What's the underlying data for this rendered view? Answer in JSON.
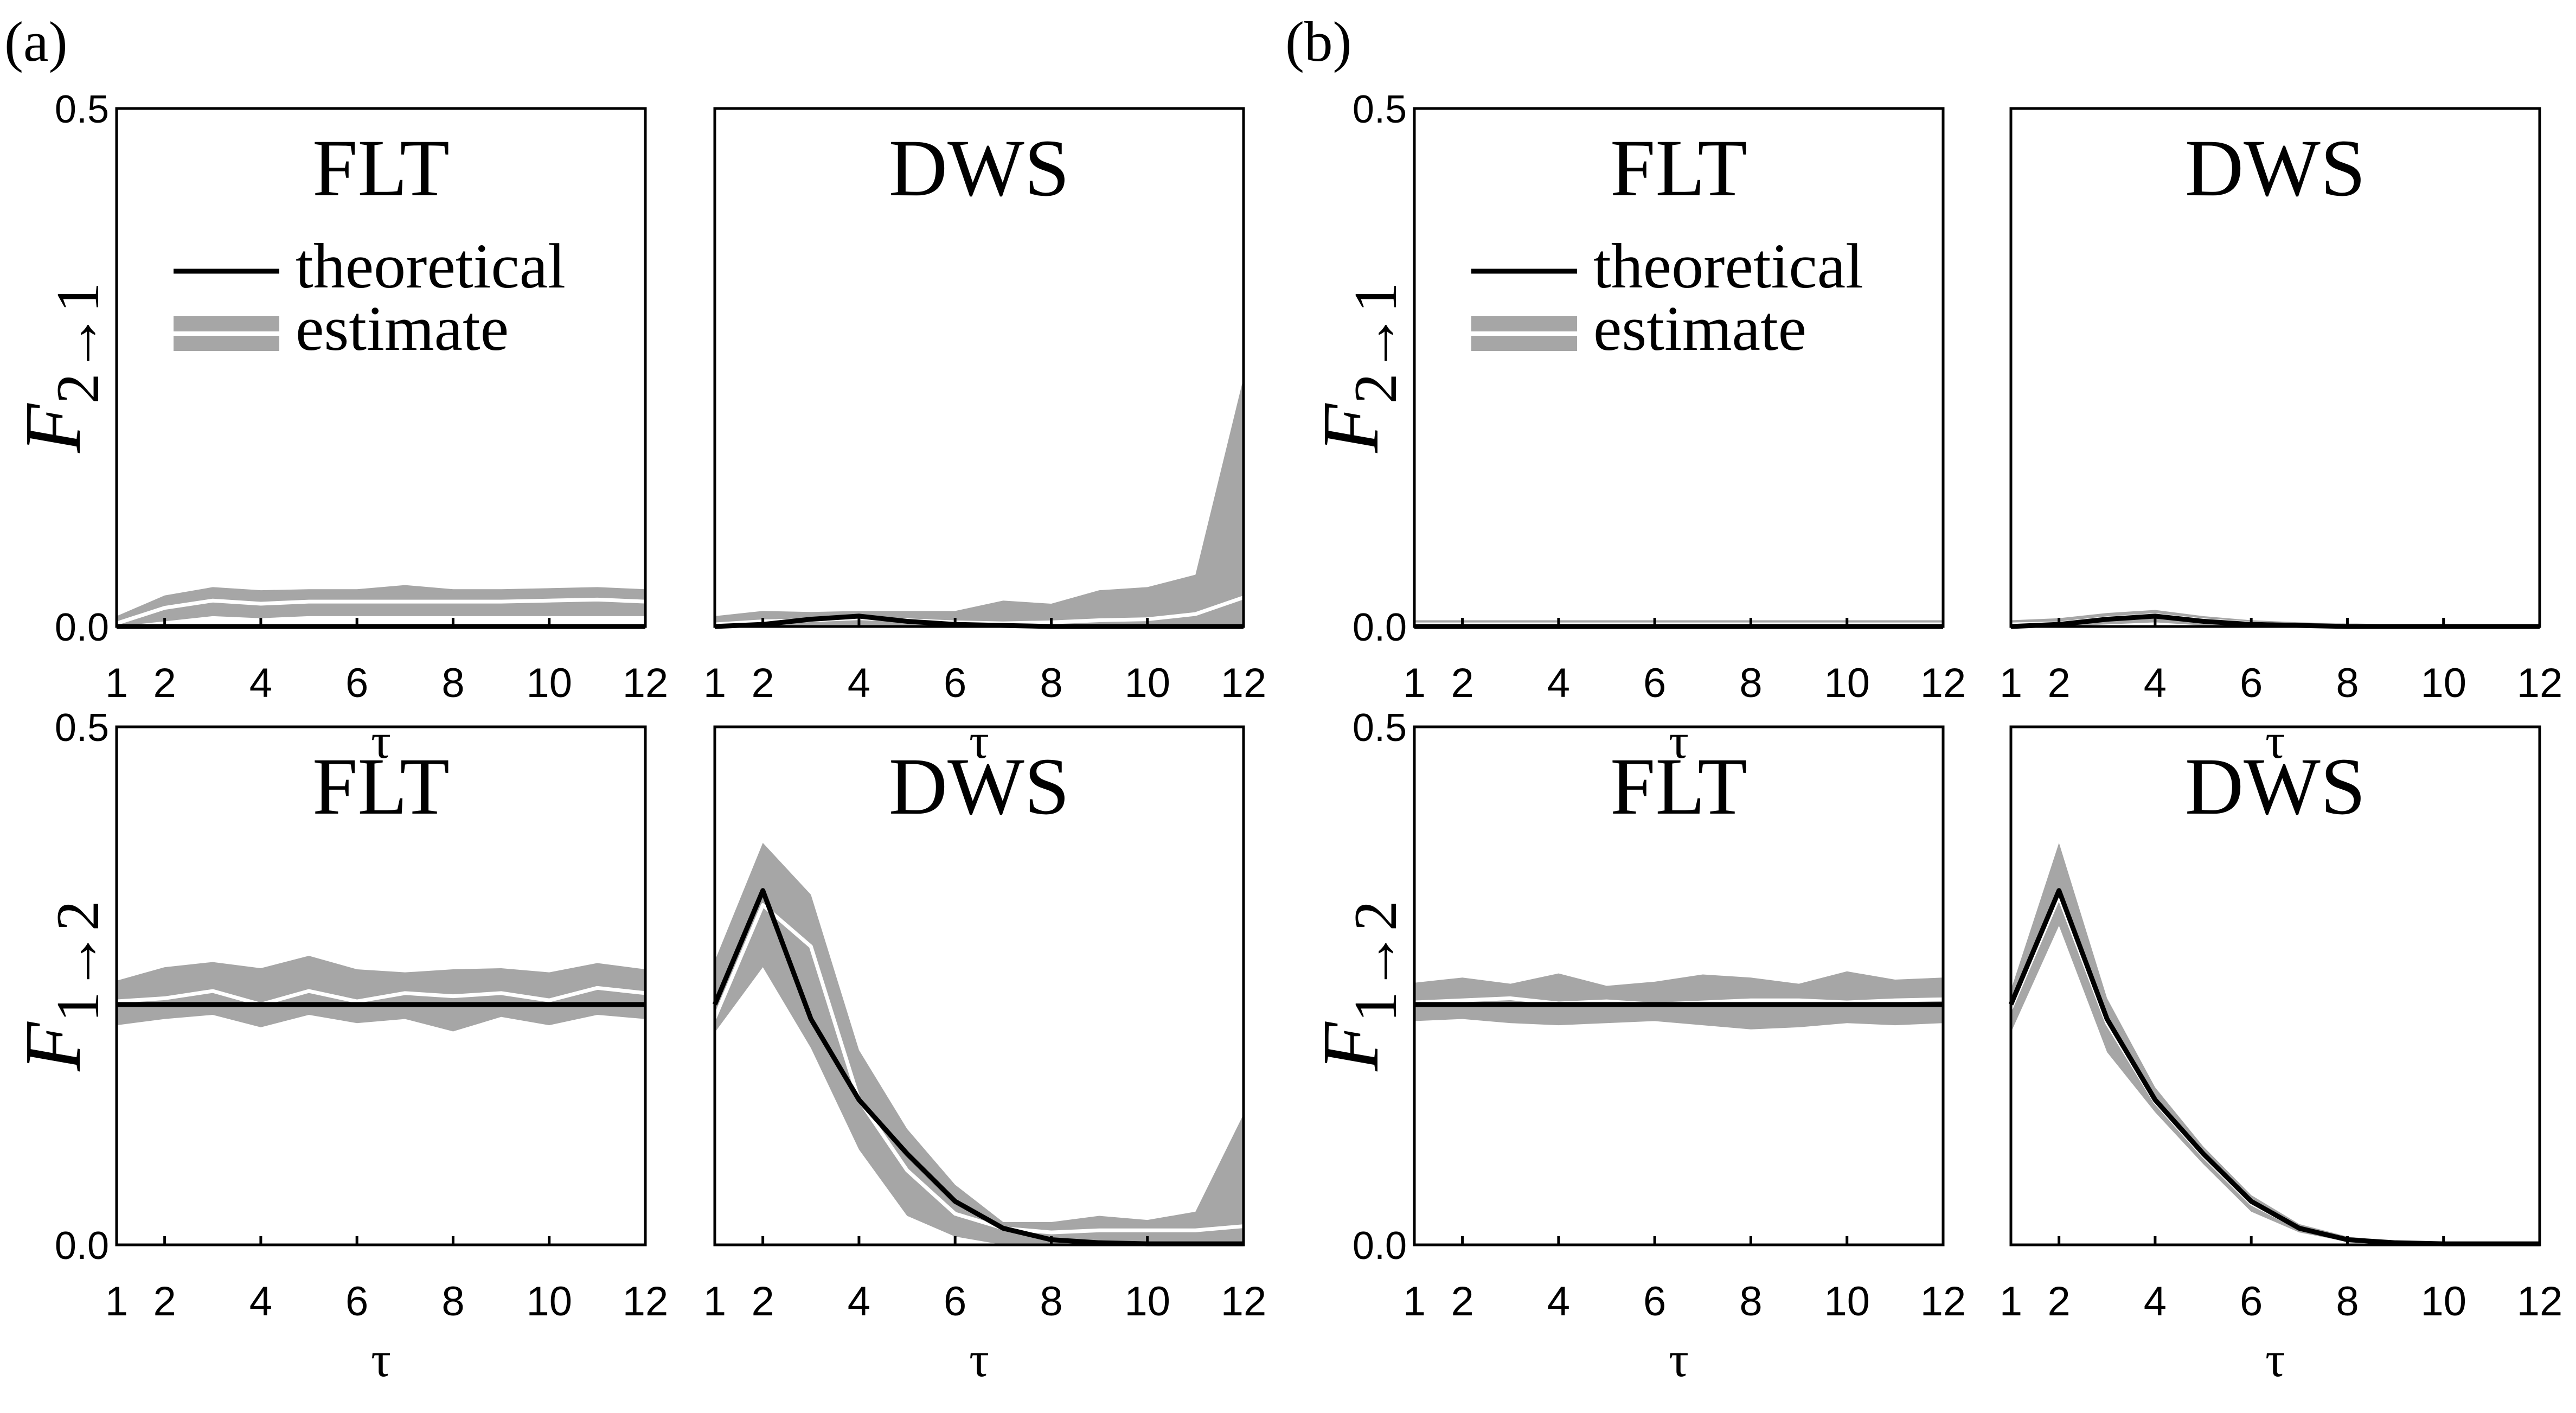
{
  "panel_labels": [
    "(a)",
    "(b)"
  ],
  "legend": {
    "theoretical": "theoretical",
    "estimate": "estimate"
  },
  "colors": {
    "band": "#a6a6a6",
    "estimate_line": "#ffffff",
    "theory_line": "#000000"
  },
  "chart_data": [
    {
      "type": "area",
      "panel": "(a)",
      "title": "FLT",
      "ylabel_main": "F",
      "ylabel_sub": "2→1",
      "xlabel": "τ",
      "xlim": [
        1,
        12
      ],
      "ylim": [
        0,
        0.5
      ],
      "y_ticks": [
        "0.0",
        "0.5"
      ],
      "x_ticks": [
        "1",
        "2",
        "4",
        "6",
        "8",
        "10",
        "12"
      ],
      "legend": true,
      "x": [
        1,
        2,
        3,
        4,
        5,
        6,
        7,
        8,
        9,
        10,
        11,
        12
      ],
      "theoretical": [
        0,
        0,
        0,
        0,
        0,
        0,
        0,
        0,
        0,
        0,
        0,
        0
      ],
      "estimate": [
        0.003,
        0.018,
        0.025,
        0.022,
        0.024,
        0.024,
        0.024,
        0.024,
        0.024,
        0.025,
        0.026,
        0.024
      ],
      "band_upper": [
        0.01,
        0.03,
        0.038,
        0.035,
        0.036,
        0.036,
        0.04,
        0.036,
        0.036,
        0.037,
        0.038,
        0.036
      ],
      "band_lower": [
        0,
        0.005,
        0.01,
        0.008,
        0.01,
        0.01,
        0.01,
        0.01,
        0.01,
        0.01,
        0.01,
        0.01
      ]
    },
    {
      "type": "area",
      "panel": "(a)",
      "title": "DWS",
      "ylabel_main": "",
      "ylabel_sub": "",
      "xlabel": "τ",
      "xlim": [
        1,
        12
      ],
      "ylim": [
        0,
        0.5
      ],
      "y_ticks": [
        "",
        ""
      ],
      "x_ticks": [
        "1",
        "2",
        "4",
        "6",
        "8",
        "10",
        "12"
      ],
      "legend": false,
      "x": [
        1,
        2,
        3,
        4,
        5,
        6,
        7,
        8,
        9,
        10,
        11,
        12
      ],
      "theoretical": [
        0,
        0.002,
        0.007,
        0.01,
        0.005,
        0.002,
        0.001,
        0,
        0,
        0,
        0,
        0
      ],
      "estimate": [
        0.002,
        0.005,
        0.006,
        0.008,
        0.006,
        0.004,
        0.003,
        0.004,
        0.006,
        0.007,
        0.012,
        0.028
      ],
      "band_upper": [
        0.01,
        0.015,
        0.014,
        0.015,
        0.015,
        0.015,
        0.025,
        0.022,
        0.035,
        0.038,
        0.05,
        0.24
      ],
      "band_lower": [
        0,
        0,
        0,
        0,
        0,
        0,
        0,
        0,
        0,
        0,
        0,
        0
      ]
    },
    {
      "type": "area",
      "panel": "(b)",
      "title": "FLT",
      "ylabel_main": "F",
      "ylabel_sub": "2→1",
      "xlabel": "τ",
      "xlim": [
        1,
        12
      ],
      "ylim": [
        0,
        0.5
      ],
      "y_ticks": [
        "0.0",
        "0.5"
      ],
      "x_ticks": [
        "1",
        "2",
        "4",
        "6",
        "8",
        "10",
        "12"
      ],
      "legend": true,
      "x": [
        1,
        2,
        3,
        4,
        5,
        6,
        7,
        8,
        9,
        10,
        11,
        12
      ],
      "theoretical": [
        0,
        0,
        0,
        0,
        0,
        0,
        0,
        0,
        0,
        0,
        0,
        0
      ],
      "estimate": [
        0.002,
        0.002,
        0.002,
        0.002,
        0.002,
        0.002,
        0.002,
        0.002,
        0.002,
        0.002,
        0.002,
        0.002
      ],
      "band_upper": [
        0.006,
        0.006,
        0.006,
        0.006,
        0.006,
        0.006,
        0.006,
        0.006,
        0.006,
        0.006,
        0.006,
        0.006
      ],
      "band_lower": [
        0,
        0,
        0,
        0,
        0,
        0,
        0,
        0,
        0,
        0,
        0,
        0
      ]
    },
    {
      "type": "area",
      "panel": "(b)",
      "title": "DWS",
      "ylabel_main": "",
      "ylabel_sub": "",
      "xlabel": "τ",
      "xlim": [
        1,
        12
      ],
      "ylim": [
        0,
        0.5
      ],
      "y_ticks": [
        "",
        ""
      ],
      "x_ticks": [
        "1",
        "2",
        "4",
        "6",
        "8",
        "10",
        "12"
      ],
      "legend": false,
      "x": [
        1,
        2,
        3,
        4,
        5,
        6,
        7,
        8,
        9,
        10,
        11,
        12
      ],
      "theoretical": [
        0,
        0.002,
        0.007,
        0.01,
        0.005,
        0.002,
        0.001,
        0,
        0,
        0,
        0,
        0
      ],
      "estimate": [
        0.002,
        0.003,
        0.008,
        0.011,
        0.006,
        0.003,
        0.001,
        0.001,
        0,
        0,
        0,
        0
      ],
      "band_upper": [
        0.006,
        0.008,
        0.013,
        0.016,
        0.01,
        0.006,
        0.004,
        0.003,
        0.002,
        0.002,
        0.002,
        0.002
      ],
      "band_lower": [
        0,
        0,
        0.002,
        0.004,
        0.001,
        0,
        0,
        0,
        0,
        0,
        0,
        0
      ]
    },
    {
      "type": "area",
      "panel": "(a)",
      "title": "FLT",
      "ylabel_main": "F",
      "ylabel_sub": "1→2",
      "xlabel": "τ",
      "xlim": [
        1,
        12
      ],
      "ylim": [
        0,
        0.5
      ],
      "y_ticks": [
        "0.0",
        "0.5"
      ],
      "x_ticks": [
        "1",
        "2",
        "4",
        "6",
        "8",
        "10",
        "12"
      ],
      "legend": false,
      "x": [
        1,
        2,
        3,
        4,
        5,
        6,
        7,
        8,
        9,
        10,
        11,
        12
      ],
      "theoretical": [
        0.232,
        0.232,
        0.232,
        0.232,
        0.232,
        0.232,
        0.232,
        0.232,
        0.232,
        0.232,
        0.232,
        0.232
      ],
      "estimate": [
        0.235,
        0.238,
        0.245,
        0.232,
        0.245,
        0.235,
        0.243,
        0.24,
        0.243,
        0.236,
        0.248,
        0.243
      ],
      "band_upper": [
        0.255,
        0.268,
        0.273,
        0.267,
        0.279,
        0.266,
        0.263,
        0.266,
        0.267,
        0.263,
        0.272,
        0.266
      ],
      "band_lower": [
        0.212,
        0.218,
        0.222,
        0.21,
        0.222,
        0.214,
        0.218,
        0.206,
        0.22,
        0.212,
        0.222,
        0.218
      ]
    },
    {
      "type": "area",
      "panel": "(a)",
      "title": "DWS",
      "ylabel_main": "",
      "ylabel_sub": "",
      "xlabel": "τ",
      "xlim": [
        1,
        12
      ],
      "ylim": [
        0,
        0.5
      ],
      "y_ticks": [
        "",
        ""
      ],
      "x_ticks": [
        "1",
        "2",
        "4",
        "6",
        "8",
        "10",
        "12"
      ],
      "legend": false,
      "x": [
        1,
        2,
        3,
        4,
        5,
        6,
        7,
        8,
        9,
        10,
        11,
        12
      ],
      "theoretical": [
        0.232,
        0.342,
        0.218,
        0.14,
        0.088,
        0.042,
        0.016,
        0.005,
        0.002,
        0.001,
        0.001,
        0.001
      ],
      "estimate": [
        0.219,
        0.328,
        0.288,
        0.14,
        0.072,
        0.03,
        0.016,
        0.012,
        0.014,
        0.014,
        0.014,
        0.018
      ],
      "band_upper": [
        0.274,
        0.388,
        0.338,
        0.188,
        0.112,
        0.058,
        0.022,
        0.022,
        0.028,
        0.024,
        0.032,
        0.126
      ],
      "band_lower": [
        0.205,
        0.268,
        0.19,
        0.092,
        0.028,
        0.008,
        0,
        0,
        0,
        0,
        0,
        0
      ]
    },
    {
      "type": "area",
      "panel": "(b)",
      "title": "FLT",
      "ylabel_main": "F",
      "ylabel_sub": "1→2",
      "xlabel": "τ",
      "xlim": [
        1,
        12
      ],
      "ylim": [
        0,
        0.5
      ],
      "y_ticks": [
        "0.0",
        "0.5"
      ],
      "x_ticks": [
        "1",
        "2",
        "4",
        "6",
        "8",
        "10",
        "12"
      ],
      "legend": false,
      "x": [
        1,
        2,
        3,
        4,
        5,
        6,
        7,
        8,
        9,
        10,
        11,
        12
      ],
      "theoretical": [
        0.232,
        0.232,
        0.232,
        0.232,
        0.232,
        0.232,
        0.232,
        0.232,
        0.232,
        0.232,
        0.232,
        0.232
      ],
      "estimate": [
        0.234,
        0.236,
        0.238,
        0.233,
        0.235,
        0.232,
        0.234,
        0.236,
        0.236,
        0.234,
        0.236,
        0.237
      ],
      "band_upper": [
        0.253,
        0.258,
        0.252,
        0.262,
        0.25,
        0.254,
        0.261,
        0.258,
        0.252,
        0.264,
        0.256,
        0.258
      ],
      "band_lower": [
        0.216,
        0.218,
        0.214,
        0.212,
        0.214,
        0.216,
        0.212,
        0.208,
        0.21,
        0.214,
        0.212,
        0.214
      ]
    },
    {
      "type": "area",
      "panel": "(b)",
      "title": "DWS",
      "ylabel_main": "",
      "ylabel_sub": "",
      "xlabel": "τ",
      "xlim": [
        1,
        12
      ],
      "ylim": [
        0,
        0.5
      ],
      "y_ticks": [
        "",
        ""
      ],
      "x_ticks": [
        "1",
        "2",
        "4",
        "6",
        "8",
        "10",
        "12"
      ],
      "legend": false,
      "x": [
        1,
        2,
        3,
        4,
        5,
        6,
        7,
        8,
        9,
        10,
        11,
        12
      ],
      "theoretical": [
        0.232,
        0.342,
        0.218,
        0.14,
        0.088,
        0.042,
        0.016,
        0.005,
        0.002,
        0.001,
        0.001,
        0.001
      ],
      "estimate": [
        0.228,
        0.336,
        0.214,
        0.138,
        0.086,
        0.04,
        0.016,
        0.005,
        0.002,
        0.001,
        0.001,
        0.001
      ],
      "band_upper": [
        0.246,
        0.388,
        0.238,
        0.152,
        0.095,
        0.048,
        0.02,
        0.008,
        0.003,
        0.002,
        0.002,
        0.002
      ],
      "band_lower": [
        0.205,
        0.308,
        0.186,
        0.128,
        0.078,
        0.032,
        0.012,
        0.003,
        0.001,
        0,
        0,
        0
      ]
    }
  ]
}
